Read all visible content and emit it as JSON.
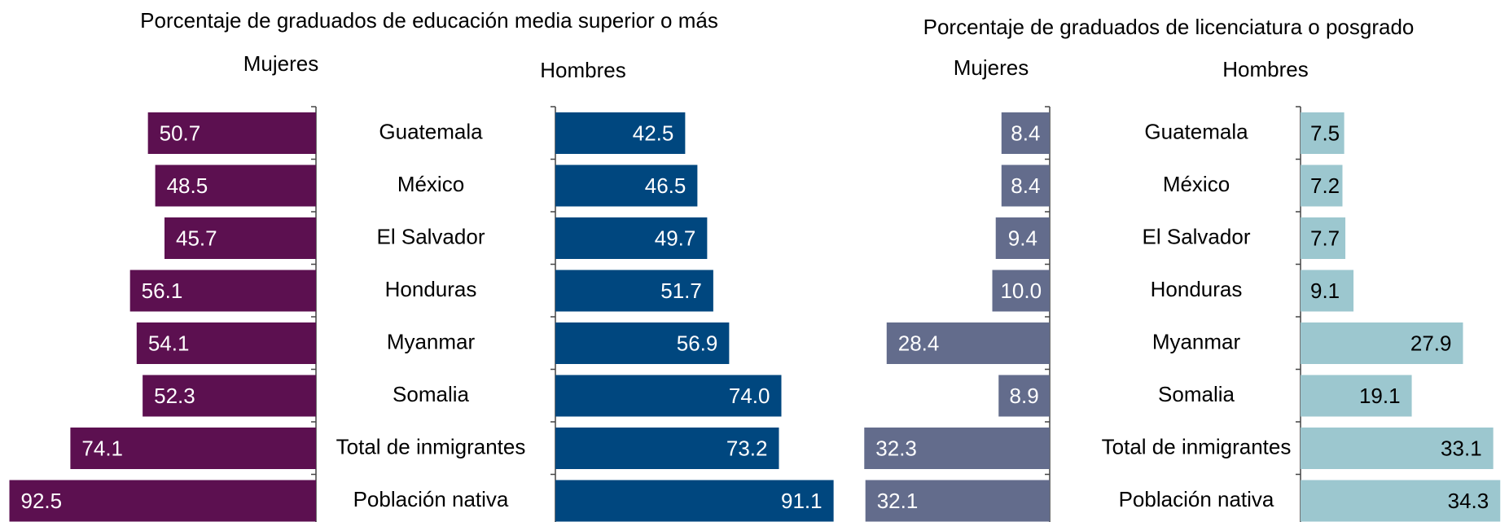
{
  "chart_data": [
    {
      "type": "bar",
      "title": "Porcentaje de graduados de educación media superior o más",
      "categories": [
        "Guatemala",
        "México",
        "El Salvador",
        "Honduras",
        "Myanmar",
        "Somalia",
        "Total de inmigrantes",
        "Población nativa"
      ],
      "series": [
        {
          "name": "Mujeres",
          "color": "#5c1050",
          "values": [
            50.7,
            48.5,
            45.7,
            56.1,
            54.1,
            52.3,
            74.1,
            92.5
          ],
          "value_labels": [
            "50.7",
            "48.5",
            "45.7",
            "56.1",
            "54.1",
            "52.3",
            "74.1",
            "92.5"
          ]
        },
        {
          "name": "Hombres",
          "color": "#00477f",
          "values": [
            42.5,
            46.5,
            49.7,
            51.7,
            56.9,
            74.0,
            73.2,
            91.1
          ],
          "value_labels": [
            "42.5",
            "46.5",
            "49.7",
            "51.7",
            "56.9",
            "74.0",
            "73.2",
            "91.1"
          ]
        }
      ]
    },
    {
      "type": "bar",
      "title": "Porcentaje de graduados de licenciatura o posgrado",
      "categories": [
        "Guatemala",
        "México",
        "El Salvador",
        "Honduras",
        "Myanmar",
        "Somalia",
        "Total de inmigrantes",
        "Población nativa"
      ],
      "series": [
        {
          "name": "Mujeres",
          "color": "#636c8c",
          "values": [
            8.4,
            8.4,
            9.4,
            10.0,
            28.4,
            8.9,
            32.3,
            32.1
          ],
          "value_labels": [
            "8.4",
            "8.4",
            "9.4",
            "10.0",
            "28.4",
            "8.9",
            "32.3",
            "32.1"
          ]
        },
        {
          "name": "Hombres",
          "color": "#9cc7cf",
          "values": [
            7.5,
            7.2,
            7.7,
            9.1,
            27.9,
            19.1,
            33.1,
            34.3
          ],
          "value_labels": [
            "7.5",
            "7.2",
            "7.7",
            "9.1",
            "27.9",
            "19.1",
            "33.1",
            "34.3"
          ]
        }
      ]
    }
  ]
}
